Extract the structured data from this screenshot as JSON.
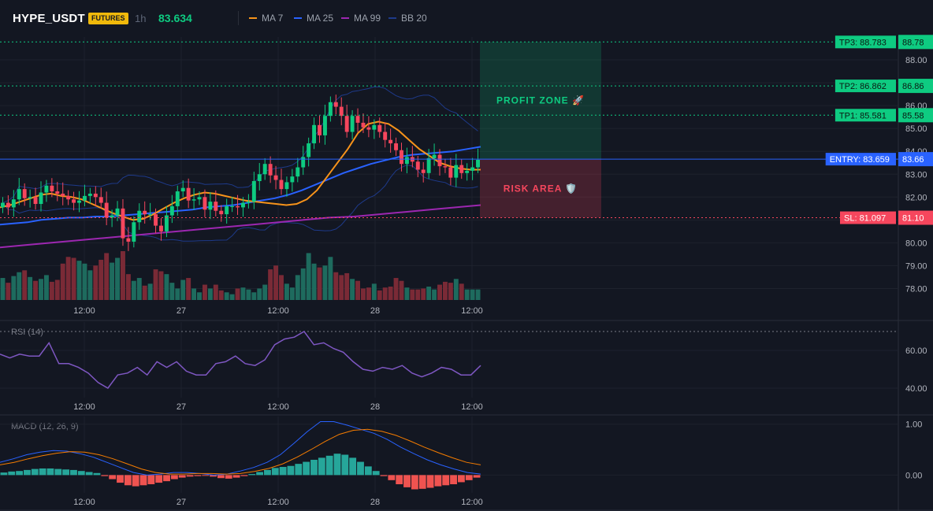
{
  "header": {
    "symbol": "HYPE_USDT",
    "badge": "FUTURES",
    "timeframe": "1h",
    "price": "83.634"
  },
  "indicators": [
    {
      "label": "MA 7",
      "color": "#f7931a"
    },
    {
      "label": "MA 25",
      "color": "#2962ff"
    },
    {
      "label": "MA 99",
      "color": "#9c27b0"
    },
    {
      "label": "BB 20",
      "color": "#1e3a8a"
    }
  ],
  "colors": {
    "up": "#0ecb81",
    "down": "#f6465d",
    "up_volume": "#1e6b5e",
    "down_volume": "#7a2a36",
    "macd_line": "#2962ff",
    "signal_line": "#f57c00",
    "rsi_line": "#7e57c2",
    "tp": "#0ecb81",
    "entry": "#2962ff",
    "sl": "#f6465d"
  },
  "trade": {
    "zones": {
      "profit": "PROFIT ZONE 🚀",
      "risk": "RISK AREA 🛡️"
    },
    "levels": [
      {
        "label": "TP3: 88.783",
        "axis": "88.78",
        "value": 88.783,
        "type": "tp"
      },
      {
        "label": "TP2: 86.862",
        "axis": "86.86",
        "value": 86.862,
        "type": "tp"
      },
      {
        "label": "TP1: 85.581",
        "axis": "85.58",
        "value": 85.581,
        "type": "tp"
      },
      {
        "label": "ENTRY: 83.659",
        "axis": "83.66",
        "value": 83.659,
        "type": "entry"
      },
      {
        "label": "SL: 81.097",
        "axis": "81.10",
        "value": 81.097,
        "type": "sl"
      }
    ]
  },
  "chart_data": [
    {
      "type": "candlestick",
      "title": "",
      "ylim": [
        77.5,
        89.0
      ],
      "y_ticks": [
        "88.00",
        "87.00",
        "86.00",
        "85.00",
        "84.00",
        "83.00",
        "82.00",
        "81.00",
        "80.00",
        "79.00",
        "78.00"
      ],
      "x_ticks": [
        "12:00",
        "27",
        "12:00",
        "28",
        "12:00"
      ],
      "close": [
        81.75,
        81.55,
        81.9,
        82.35,
        81.95,
        82.0,
        81.7,
        82.2,
        82.5,
        82.25,
        82.15,
        82.05,
        81.9,
        81.75,
        81.85,
        82.05,
        82.15,
        82.0,
        81.75,
        81.1,
        81.2,
        81.5,
        80.2,
        80.05,
        80.9,
        81.4,
        81.25,
        81.25,
        80.75,
        80.5,
        81.2,
        81.6,
        82.25,
        82.4,
        81.85,
        81.9,
        82.0,
        81.45,
        81.8,
        81.4,
        81.25,
        81.6,
        81.6,
        81.55,
        81.75,
        81.8,
        82.7,
        83.0,
        83.45,
        82.95,
        82.75,
        82.35,
        82.65,
        82.9,
        83.3,
        83.75,
        84.35,
        85.15,
        84.7,
        85.55,
        86.15,
        85.95,
        85.55,
        84.85,
        85.55,
        85.25,
        85.05,
        84.95,
        85.15,
        84.85,
        84.5,
        84.35,
        84.05,
        83.45,
        83.75,
        83.55,
        83.2,
        83.05,
        83.7,
        83.85,
        83.35,
        83.3,
        82.85,
        83.4,
        83.05,
        83.15,
        83.3,
        83.63
      ],
      "volume": [
        2.3,
        1.8,
        2.5,
        2.9,
        3.1,
        2.4,
        2.0,
        2.2,
        2.6,
        1.9,
        2.1,
        3.8,
        4.5,
        4.4,
        4.1,
        3.8,
        3.1,
        3.6,
        4.2,
        4.9,
        3.9,
        4.4,
        5.1,
        2.7,
        2.0,
        2.3,
        1.5,
        1.7,
        3.2,
        3.0,
        2.7,
        1.8,
        1.2,
        2.1,
        2.3,
        1.2,
        0.8,
        1.6,
        1.2,
        1.6,
        1.0,
        0.8,
        0.6,
        1.2,
        1.3,
        1.1,
        0.8,
        1.2,
        1.6,
        3.2,
        3.6,
        2.6,
        1.7,
        1.3,
        2.6,
        3.3,
        4.9,
        3.8,
        3.4,
        3.6,
        4.5,
        2.9,
        2.6,
        2.8,
        2.2,
        2.0,
        1.2,
        1.3,
        1.7,
        1.0,
        1.3,
        1.4,
        2.3,
        2.0,
        1.3,
        1.1,
        1.1,
        1.2,
        1.4,
        1.1,
        1.6,
        1.9,
        1.8,
        2.2,
        1.7,
        1.1,
        1.1,
        1.1
      ],
      "series": [
        {
          "name": "MA 7",
          "values": [
            81.55,
            81.65,
            81.8,
            81.95,
            82.1,
            82.15,
            82.05,
            82.0,
            81.9,
            81.7,
            81.5,
            81.3,
            81.15,
            81.0,
            81.05,
            81.25,
            81.5,
            81.75,
            81.95,
            82.1,
            82.2,
            82.15,
            82.05,
            81.95,
            81.85,
            81.8,
            81.75,
            81.7,
            81.65,
            81.7,
            81.9,
            82.3,
            82.9,
            83.5,
            84.1,
            84.8,
            85.2,
            85.3,
            85.2,
            84.9,
            84.5,
            84.1,
            83.8,
            83.5,
            83.35,
            83.25,
            83.2,
            83.2
          ]
        },
        {
          "name": "MA 25",
          "values": [
            80.8,
            80.85,
            80.9,
            81.0,
            81.05,
            81.1,
            81.1,
            81.15,
            81.15,
            81.2,
            81.25,
            81.3,
            81.35,
            81.4,
            81.45,
            81.55,
            81.6,
            81.65,
            81.75,
            81.85,
            81.95,
            82.1,
            82.3,
            82.55,
            82.8,
            83.05,
            83.25,
            83.45,
            83.6,
            83.75,
            83.85,
            83.9,
            83.95,
            84.0,
            84.1,
            84.2
          ]
        },
        {
          "name": "MA 99",
          "values": [
            79.8,
            79.9,
            80.0,
            80.1,
            80.2,
            80.3,
            80.4,
            80.5,
            80.6,
            80.7,
            80.8,
            80.9,
            81.0,
            81.1,
            81.15,
            81.25,
            81.35,
            81.45,
            81.55,
            81.65
          ]
        },
        {
          "name": "BB 20",
          "values": []
        }
      ]
    },
    {
      "type": "line",
      "title": "RSI (14)",
      "ylim": [
        35,
        75
      ],
      "y_ticks": [
        "60.00",
        "40.00"
      ],
      "x_ticks": [
        "12:00",
        "27",
        "12:00",
        "28",
        "12:00"
      ],
      "values": [
        58,
        56,
        58,
        57,
        57,
        64,
        53,
        53,
        51,
        48,
        43,
        40,
        47,
        48,
        51,
        47,
        54,
        51,
        54,
        49,
        47,
        47,
        53,
        54,
        57,
        53,
        52,
        55,
        63,
        66,
        67,
        70,
        63,
        64,
        61,
        59,
        54,
        50,
        49,
        51,
        50,
        52,
        48,
        46,
        48,
        51,
        50,
        47,
        47,
        52
      ]
    },
    {
      "type": "bar",
      "title": "MACD (12, 26, 9)",
      "ylim": [
        -0.35,
        1.15
      ],
      "y_ticks": [
        "1.00",
        "0.00"
      ],
      "x_ticks": [
        "12:00",
        "27",
        "12:00",
        "28",
        "12:00"
      ],
      "histogram": [
        0.05,
        0.07,
        0.08,
        0.1,
        0.12,
        0.13,
        0.13,
        0.12,
        0.11,
        0.1,
        0.08,
        0.06,
        0.04,
        -0.02,
        -0.08,
        -0.15,
        -0.2,
        -0.22,
        -0.2,
        -0.18,
        -0.15,
        -0.12,
        -0.08,
        -0.05,
        -0.03,
        -0.02,
        -0.01,
        -0.03,
        -0.06,
        -0.07,
        -0.05,
        -0.02,
        0.02,
        0.06,
        0.1,
        0.14,
        0.16,
        0.18,
        0.22,
        0.26,
        0.3,
        0.34,
        0.38,
        0.42,
        0.4,
        0.34,
        0.26,
        0.17,
        0.08,
        -0.02,
        -0.1,
        -0.18,
        -0.24,
        -0.28,
        -0.27,
        -0.25,
        -0.22,
        -0.2,
        -0.18,
        -0.14,
        -0.1,
        -0.05
      ],
      "series": [
        {
          "name": "MACD",
          "values": [
            0.25,
            0.32,
            0.4,
            0.45,
            0.48,
            0.47,
            0.42,
            0.35,
            0.25,
            0.15,
            0.05,
            0.0,
            0.02,
            0.05,
            0.05,
            0.03,
            0.0,
            0.02,
            0.08,
            0.15,
            0.25,
            0.4,
            0.62,
            0.85,
            1.05,
            1.05,
            0.98,
            0.9,
            0.82,
            0.7,
            0.55,
            0.42,
            0.3,
            0.2,
            0.12,
            0.05,
            0.02
          ]
        },
        {
          "name": "Signal",
          "values": [
            0.2,
            0.25,
            0.32,
            0.38,
            0.43,
            0.46,
            0.45,
            0.4,
            0.32,
            0.22,
            0.12,
            0.05,
            0.02,
            0.02,
            0.03,
            0.03,
            0.02,
            0.03,
            0.07,
            0.13,
            0.22,
            0.35,
            0.5,
            0.66,
            0.8,
            0.88,
            0.9,
            0.86,
            0.78,
            0.67,
            0.55,
            0.44,
            0.34,
            0.25,
            0.2
          ]
        }
      ]
    }
  ]
}
